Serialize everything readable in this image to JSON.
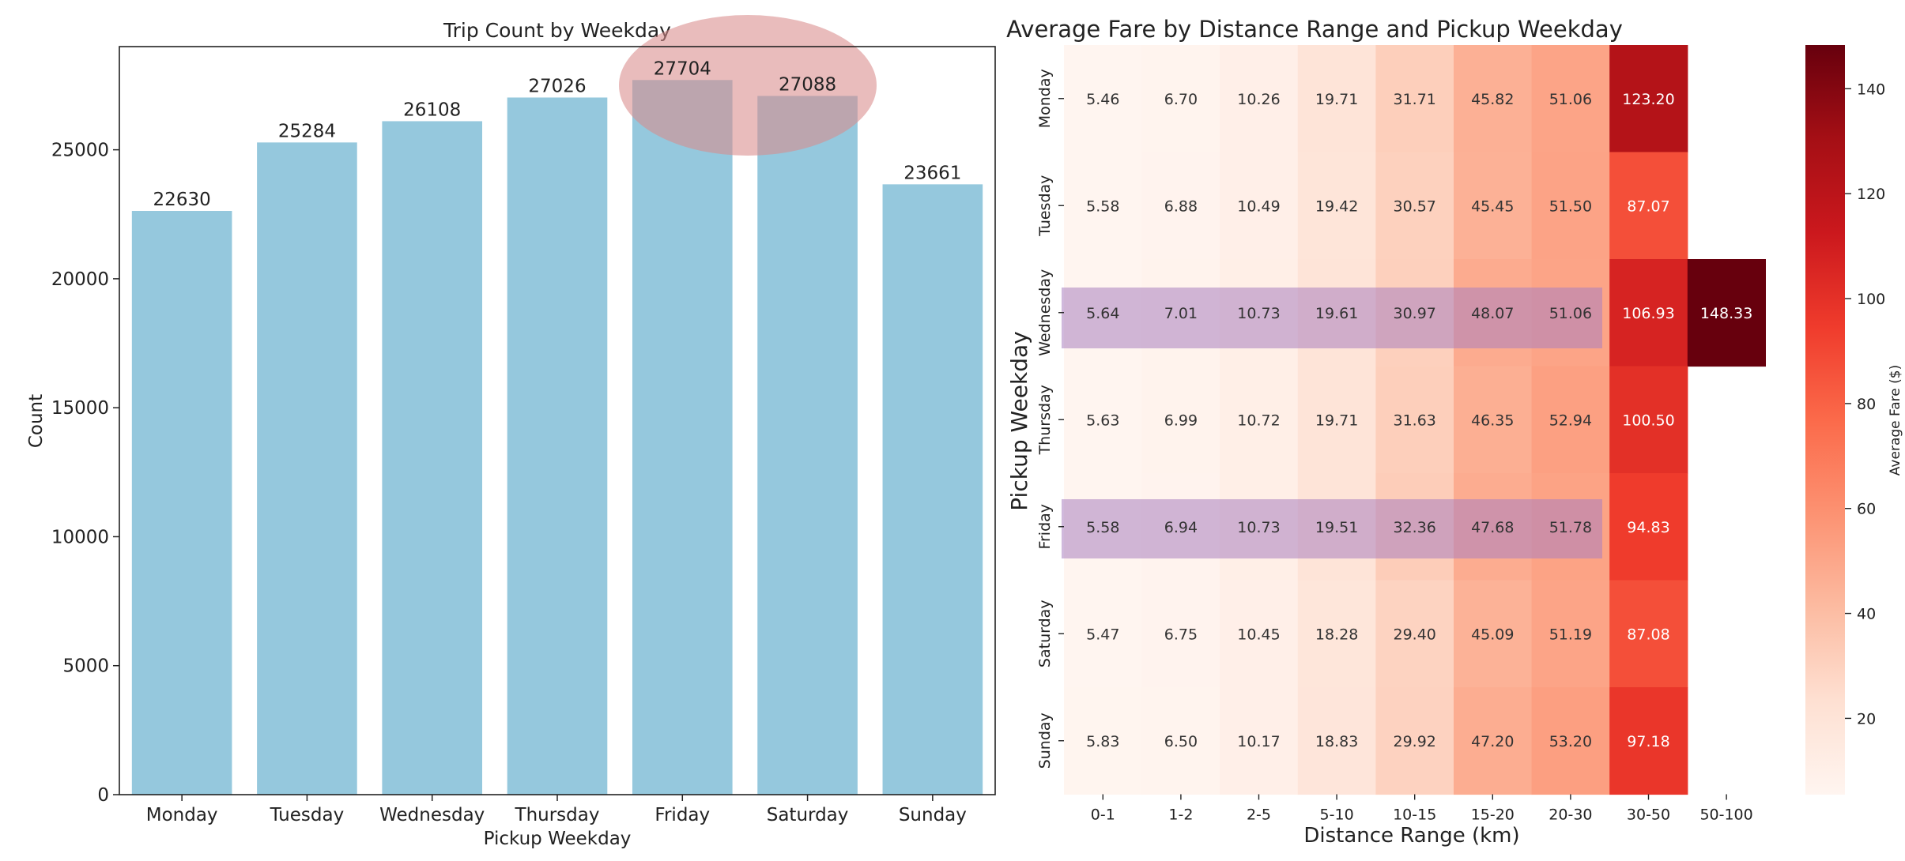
{
  "chart_data": [
    {
      "type": "bar",
      "title": "Trip Count by Weekday",
      "xlabel": "Pickup Weekday",
      "ylabel": "Count",
      "categories": [
        "Monday",
        "Tuesday",
        "Wednesday",
        "Thursday",
        "Friday",
        "Saturday",
        "Sunday"
      ],
      "values": [
        22630,
        25284,
        26108,
        27026,
        27704,
        27088,
        23661
      ],
      "value_labels": [
        "22630",
        "25284",
        "26108",
        "27026",
        "27704",
        "27088",
        "23661"
      ],
      "ylim": [
        0,
        29000
      ],
      "yticks": [
        0,
        5000,
        10000,
        15000,
        20000,
        25000
      ],
      "ytick_labels": [
        "0",
        "5000",
        "10000",
        "15000",
        "20000",
        "25000"
      ],
      "grid": false,
      "bar_color": "#95c8dd",
      "highlight": {
        "shape": "ellipse",
        "categories": [
          "Friday",
          "Saturday"
        ],
        "color": "#d98c8c"
      }
    },
    {
      "type": "heatmap",
      "title": "Average Fare by Distance Range and Pickup Weekday",
      "xlabel": "Distance Range (km)",
      "ylabel": "Pickup Weekday",
      "x_categories": [
        "0-1",
        "1-2",
        "2-5",
        "5-10",
        "10-15",
        "15-20",
        "20-30",
        "30-50",
        "50-100"
      ],
      "y_categories": [
        "Monday",
        "Tuesday",
        "Wednesday",
        "Thursday",
        "Friday",
        "Saturday",
        "Sunday"
      ],
      "values": [
        [
          "5.46",
          "6.70",
          "10.26",
          "19.71",
          "31.71",
          "45.82",
          "51.06",
          "123.20",
          null
        ],
        [
          "5.58",
          "6.88",
          "10.49",
          "19.42",
          "30.57",
          "45.45",
          "51.50",
          "87.07",
          null
        ],
        [
          "5.64",
          "7.01",
          "10.73",
          "19.61",
          "30.97",
          "48.07",
          "51.06",
          "106.93",
          "148.33"
        ],
        [
          "5.63",
          "6.99",
          "10.72",
          "19.71",
          "31.63",
          "46.35",
          "52.94",
          "100.50",
          null
        ],
        [
          "5.58",
          "6.94",
          "10.73",
          "19.51",
          "32.36",
          "47.68",
          "51.78",
          "94.83",
          null
        ],
        [
          "5.47",
          "6.75",
          "10.45",
          "18.28",
          "29.40",
          "45.09",
          "51.19",
          "87.08",
          null
        ],
        [
          "5.83",
          "6.50",
          "10.17",
          "18.83",
          "29.92",
          "47.20",
          "53.20",
          "97.18",
          null
        ]
      ],
      "colorbar": {
        "label": "Average Fare ($)",
        "range": [
          5.46,
          148.33
        ],
        "ticks": [
          20,
          40,
          60,
          80,
          100,
          120,
          140
        ],
        "tick_labels": [
          "20",
          "40",
          "60",
          "80",
          "100",
          "120",
          "140"
        ],
        "colormap": "Reds"
      },
      "highlight": {
        "shape": "band",
        "rows": [
          "Wednesday",
          "Friday"
        ],
        "color": "#a97fc0"
      }
    }
  ]
}
